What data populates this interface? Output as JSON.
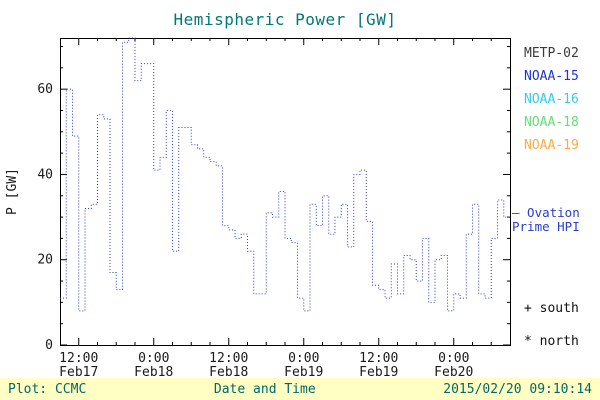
{
  "title": "Hemispheric Power [GW]",
  "legend": [
    {
      "label": "METP-02",
      "color": "#3a3a3a"
    },
    {
      "label": "NOAA-15",
      "color": "#2233cc"
    },
    {
      "label": "NOAA-16",
      "color": "#33ccee"
    },
    {
      "label": "NOAA-18",
      "color": "#66dd77"
    },
    {
      "label": "NOAA-19",
      "color": "#ffaa44"
    }
  ],
  "annotations": {
    "ovation_line1": "— Ovation",
    "ovation_line2": "Prime HPI",
    "south": "+ south",
    "north": "* north"
  },
  "footer": {
    "plot_credit": "Plot: CCMC",
    "xlabel": "Date and Time",
    "timestamp": "2015/02/20 09:10:14"
  },
  "chart_data": {
    "type": "line",
    "line_style": "dotted-step",
    "line_color": "#2a3ec8",
    "title": "Hemispheric Power [GW]",
    "ylabel": "P [GW]",
    "xlabel": "Date and Time",
    "ylim": [
      0,
      72
    ],
    "yticks": [
      0,
      20,
      40,
      60
    ],
    "y_minor_step": 5,
    "x_hours_span": 72,
    "x_minor_step_hours": 3,
    "step_hours": 1,
    "xticks": [
      {
        "hour": 3,
        "time": "12:00",
        "date": "Feb17"
      },
      {
        "hour": 15,
        "time": "0:00",
        "date": "Feb18"
      },
      {
        "hour": 27,
        "time": "12:00",
        "date": "Feb18"
      },
      {
        "hour": 39,
        "time": "0:00",
        "date": "Feb19"
      },
      {
        "hour": 51,
        "time": "12:00",
        "date": "Feb19"
      },
      {
        "hour": 63,
        "time": "0:00",
        "date": "Feb20"
      }
    ],
    "values_gw": [
      11,
      60,
      49,
      8,
      32,
      33,
      54,
      53,
      17,
      13,
      71,
      72,
      62,
      66,
      66,
      41,
      44,
      55,
      22,
      51,
      51,
      47,
      46,
      44,
      43,
      42,
      28,
      27,
      25,
      26,
      22,
      12,
      12,
      31,
      30,
      36,
      25,
      24,
      11,
      8,
      33,
      28,
      35,
      26,
      30,
      33,
      23,
      40,
      41,
      29,
      14,
      13,
      11,
      19,
      12,
      21,
      20,
      15,
      25,
      10,
      20,
      21,
      8,
      12,
      11,
      26,
      33,
      12,
      11,
      25,
      34,
      30
    ]
  }
}
